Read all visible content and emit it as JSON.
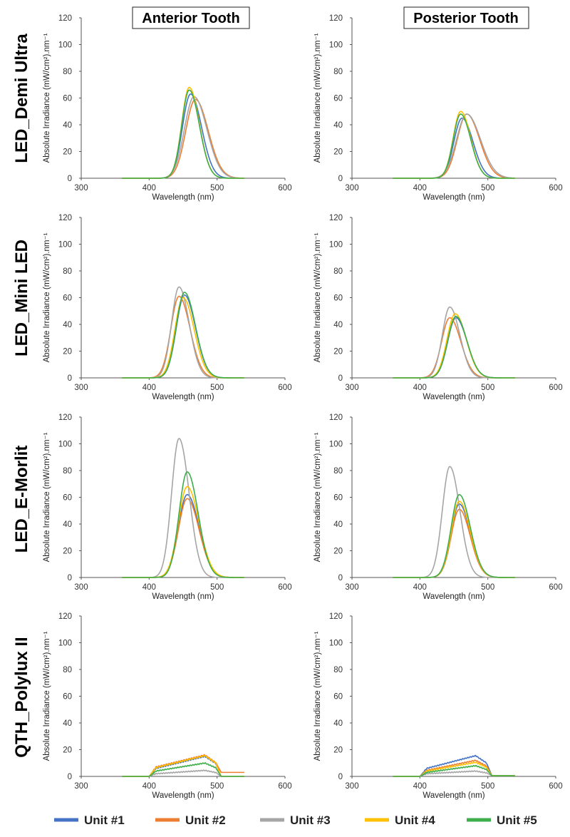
{
  "columns": [
    "Anterior Tooth",
    "Posterior Tooth"
  ],
  "rows": [
    "LED_Demi Ultra",
    "LED_Mini LED",
    "LED_E-Morlit",
    "QTH_Polylux II"
  ],
  "legend": [
    {
      "name": "Unit #1",
      "color": "#4472C4"
    },
    {
      "name": "Unit #2",
      "color": "#ED7D31"
    },
    {
      "name": "Unit #3",
      "color": "#A5A5A5"
    },
    {
      "name": "Unit #4",
      "color": "#FFC000"
    },
    {
      "name": "Unit #5",
      "color": "#3DAE4A"
    }
  ],
  "chart_data": [
    {
      "type": "line",
      "row": "LED_Demi Ultra",
      "column": "Anterior Tooth",
      "xlabel": "Wavelength (nm)",
      "ylabel": "Absolute Irradiance (mW/cm²).nm⁻¹",
      "xlim": [
        300,
        600
      ],
      "ylim": [
        0,
        120
      ],
      "xticks": [
        300,
        400,
        500,
        600
      ],
      "yticks": [
        0,
        20,
        40,
        60,
        80,
        100,
        120
      ],
      "x_range": [
        360,
        540
      ],
      "series": [
        {
          "name": "Unit #1",
          "kind": "peak",
          "center": 461,
          "peak": 63,
          "width": 12
        },
        {
          "name": "Unit #2",
          "kind": "peak",
          "center": 468,
          "peak": 59,
          "width": 14
        },
        {
          "name": "Unit #3",
          "kind": "peak",
          "center": 466,
          "peak": 61,
          "width": 14
        },
        {
          "name": "Unit #4",
          "kind": "peak",
          "center": 459,
          "peak": 68,
          "width": 11
        },
        {
          "name": "Unit #5",
          "kind": "peak",
          "center": 459,
          "peak": 66,
          "width": 11
        }
      ]
    },
    {
      "type": "line",
      "row": "LED_Demi Ultra",
      "column": "Posterior Tooth",
      "xlabel": "Wavelength (nm)",
      "ylabel": "Absolute Irradiance (mW/cm²).nm⁻¹",
      "xlim": [
        300,
        600
      ],
      "ylim": [
        0,
        120
      ],
      "xticks": [
        300,
        400,
        500,
        600
      ],
      "yticks": [
        0,
        20,
        40,
        60,
        80,
        100,
        120
      ],
      "x_range": [
        360,
        540
      ],
      "series": [
        {
          "name": "Unit #1",
          "kind": "peak",
          "center": 462,
          "peak": 45,
          "width": 12
        },
        {
          "name": "Unit #2",
          "kind": "peak",
          "center": 469,
          "peak": 48,
          "width": 14
        },
        {
          "name": "Unit #3",
          "kind": "peak",
          "center": 469,
          "peak": 48,
          "width": 15
        },
        {
          "name": "Unit #4",
          "kind": "peak",
          "center": 460,
          "peak": 50,
          "width": 11
        },
        {
          "name": "Unit #5",
          "kind": "peak",
          "center": 460,
          "peak": 48,
          "width": 11
        }
      ]
    },
    {
      "type": "line",
      "row": "LED_Mini LED",
      "column": "Anterior Tooth",
      "xlabel": "Wavelength (nm)",
      "ylabel": "Absolute Irradiance (mW/cm²).nm⁻¹",
      "xlim": [
        300,
        600
      ],
      "ylim": [
        0,
        120
      ],
      "xticks": [
        300,
        400,
        500,
        600
      ],
      "yticks": [
        0,
        20,
        40,
        60,
        80,
        100,
        120
      ],
      "x_range": [
        360,
        540
      ],
      "series": [
        {
          "name": "Unit #1",
          "kind": "peak",
          "center": 452,
          "peak": 62,
          "width": 12
        },
        {
          "name": "Unit #2",
          "kind": "peak",
          "center": 444,
          "peak": 61,
          "width": 12
        },
        {
          "name": "Unit #3",
          "kind": "peak",
          "center": 444,
          "peak": 68,
          "width": 11
        },
        {
          "name": "Unit #4",
          "kind": "peak",
          "center": 450,
          "peak": 60,
          "width": 12
        },
        {
          "name": "Unit #5",
          "kind": "peak",
          "center": 452,
          "peak": 64,
          "width": 12
        }
      ]
    },
    {
      "type": "line",
      "row": "LED_Mini LED",
      "column": "Posterior Tooth",
      "xlabel": "Wavelength (nm)",
      "ylabel": "Absolute Irradiance (mW/cm²).nm⁻¹",
      "xlim": [
        300,
        600
      ],
      "ylim": [
        0,
        120
      ],
      "xticks": [
        300,
        400,
        500,
        600
      ],
      "yticks": [
        0,
        20,
        40,
        60,
        80,
        100,
        120
      ],
      "x_range": [
        360,
        540
      ],
      "series": [
        {
          "name": "Unit #1",
          "kind": "peak",
          "center": 453,
          "peak": 45,
          "width": 12
        },
        {
          "name": "Unit #2",
          "kind": "peak",
          "center": 444,
          "peak": 45,
          "width": 12
        },
        {
          "name": "Unit #3",
          "kind": "peak",
          "center": 444,
          "peak": 53,
          "width": 11
        },
        {
          "name": "Unit #4",
          "kind": "peak",
          "center": 452,
          "peak": 48,
          "width": 12
        },
        {
          "name": "Unit #5",
          "kind": "peak",
          "center": 453,
          "peak": 46,
          "width": 12
        }
      ]
    },
    {
      "type": "line",
      "row": "LED_E-Morlit",
      "column": "Anterior Tooth",
      "xlabel": "Wavelength (nm)",
      "ylabel": "Absolute Irradiance (mW/cm²).nm⁻¹",
      "xlim": [
        300,
        600
      ],
      "ylim": [
        0,
        120
      ],
      "xticks": [
        300,
        400,
        500,
        600
      ],
      "yticks": [
        0,
        20,
        40,
        60,
        80,
        100,
        120
      ],
      "x_range": [
        360,
        540
      ],
      "series": [
        {
          "name": "Unit #1",
          "kind": "peak",
          "center": 456,
          "peak": 62,
          "width": 13
        },
        {
          "name": "Unit #2",
          "kind": "peak",
          "center": 456,
          "peak": 59,
          "width": 13
        },
        {
          "name": "Unit #3",
          "kind": "peak",
          "center": 444,
          "peak": 104,
          "width": 11
        },
        {
          "name": "Unit #4",
          "kind": "peak",
          "center": 456,
          "peak": 68,
          "width": 13
        },
        {
          "name": "Unit #5",
          "kind": "peak",
          "center": 456,
          "peak": 79,
          "width": 12
        }
      ]
    },
    {
      "type": "line",
      "row": "LED_E-Morlit",
      "column": "Posterior Tooth",
      "xlabel": "Wavelength (nm)",
      "ylabel": "Absolute Irradiance (mW/cm²).nm⁻¹",
      "xlim": [
        300,
        600
      ],
      "ylim": [
        0,
        120
      ],
      "xticks": [
        300,
        400,
        500,
        600
      ],
      "yticks": [
        0,
        20,
        40,
        60,
        80,
        100,
        120
      ],
      "x_range": [
        360,
        540
      ],
      "series": [
        {
          "name": "Unit #1",
          "kind": "peak",
          "center": 458,
          "peak": 55,
          "width": 12
        },
        {
          "name": "Unit #2",
          "kind": "peak",
          "center": 458,
          "peak": 51,
          "width": 12
        },
        {
          "name": "Unit #3",
          "kind": "peak",
          "center": 444,
          "peak": 83,
          "width": 11
        },
        {
          "name": "Unit #4",
          "kind": "peak",
          "center": 458,
          "peak": 57,
          "width": 12
        },
        {
          "name": "Unit #5",
          "kind": "peak",
          "center": 458,
          "peak": 62,
          "width": 12
        }
      ]
    },
    {
      "type": "line",
      "row": "QTH_Polylux II",
      "column": "Anterior Tooth",
      "xlabel": "Wavelength (nm)",
      "ylabel": "Absolute Irradiance (mW/cm²).nm⁻¹",
      "xlim": [
        300,
        600
      ],
      "ylim": [
        0,
        120
      ],
      "xticks": [
        300,
        400,
        500,
        600
      ],
      "yticks": [
        0,
        20,
        40,
        60,
        80,
        100,
        120
      ],
      "x_range": [
        360,
        540
      ],
      "series": [
        {
          "name": "Unit #1",
          "kind": "plateau",
          "level_410": 6,
          "level_480": 15,
          "tail": 0
        },
        {
          "name": "Unit #2",
          "kind": "plateau",
          "level_410": 7,
          "level_480": 16,
          "tail": 3
        },
        {
          "name": "Unit #3",
          "kind": "plateau",
          "level_410": 2,
          "level_480": 4.5,
          "tail": 0
        },
        {
          "name": "Unit #4",
          "kind": "plateau",
          "level_410": 6.5,
          "level_480": 15.5,
          "tail": 0
        },
        {
          "name": "Unit #5",
          "kind": "plateau",
          "level_410": 4,
          "level_480": 10,
          "tail": 0
        }
      ]
    },
    {
      "type": "line",
      "row": "QTH_Polylux II",
      "column": "Posterior Tooth",
      "xlabel": "Wavelength (nm)",
      "ylabel": "Absolute Irradiance (mW/cm²).nm⁻¹",
      "xlim": [
        300,
        600
      ],
      "ylim": [
        0,
        120
      ],
      "xticks": [
        300,
        400,
        500,
        600
      ],
      "yticks": [
        0,
        20,
        40,
        60,
        80,
        100,
        120
      ],
      "x_range": [
        360,
        540
      ],
      "series": [
        {
          "name": "Unit #1",
          "kind": "plateau",
          "level_410": 6,
          "level_480": 15.5,
          "tail": 0.5
        },
        {
          "name": "Unit #2",
          "kind": "plateau",
          "level_410": 4.5,
          "level_480": 12,
          "tail": 0.5
        },
        {
          "name": "Unit #3",
          "kind": "plateau",
          "level_410": 2,
          "level_480": 4,
          "tail": 0.5
        },
        {
          "name": "Unit #4",
          "kind": "plateau",
          "level_410": 4,
          "level_480": 10.5,
          "tail": 0.5
        },
        {
          "name": "Unit #5",
          "kind": "plateau",
          "level_410": 3,
          "level_480": 8,
          "tail": 0.5
        }
      ]
    }
  ]
}
